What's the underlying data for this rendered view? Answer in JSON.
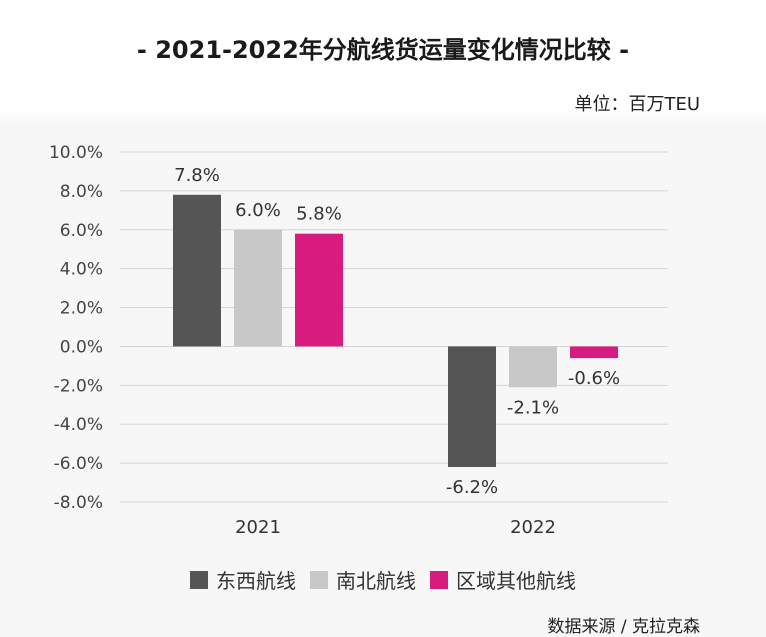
{
  "title": "- 2021-2022年分航线货运量变化情况比较 -",
  "unit": "单位：百万TEU",
  "source": "数据来源 /  克拉克森",
  "colors": {
    "东西航线": "#555555",
    "南北航线": "#c8c8c8",
    "区域其他航线": "#d81b7f"
  },
  "chart_data": {
    "type": "bar",
    "categories": [
      "2021",
      "2022"
    ],
    "series": [
      {
        "name": "东西航线",
        "values": [
          7.8,
          -6.2
        ],
        "labels": [
          "7.8%",
          "-6.2%"
        ]
      },
      {
        "name": "南北航线",
        "values": [
          6.0,
          -2.1
        ],
        "labels": [
          "6.0%",
          "-2.1%"
        ]
      },
      {
        "name": "区域其他航线",
        "values": [
          5.8,
          -0.6
        ],
        "labels": [
          "5.8%",
          "-0.6%"
        ]
      }
    ],
    "ylim": [
      -8,
      10
    ],
    "yticks": [
      "10.0%",
      "8.0%",
      "6.0%",
      "4.0%",
      "2.0%",
      "0.0%",
      "-2.0%",
      "-4.0%",
      "-6.0%",
      "-8.0%"
    ],
    "ytick_values": [
      10,
      8,
      6,
      4,
      2,
      0,
      -2,
      -4,
      -6,
      -8
    ],
    "grid": true,
    "legend": "bottom"
  }
}
